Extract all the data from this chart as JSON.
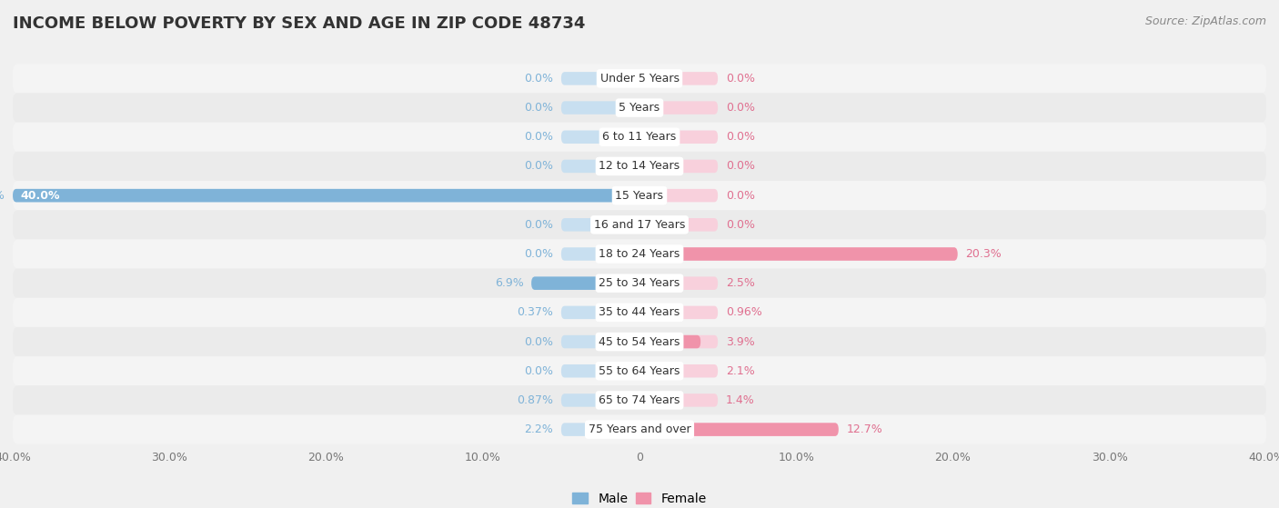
{
  "title": "INCOME BELOW POVERTY BY SEX AND AGE IN ZIP CODE 48734",
  "source": "Source: ZipAtlas.com",
  "categories": [
    "Under 5 Years",
    "5 Years",
    "6 to 11 Years",
    "12 to 14 Years",
    "15 Years",
    "16 and 17 Years",
    "18 to 24 Years",
    "25 to 34 Years",
    "35 to 44 Years",
    "45 to 54 Years",
    "55 to 64 Years",
    "65 to 74 Years",
    "75 Years and over"
  ],
  "male": [
    0.0,
    0.0,
    0.0,
    0.0,
    40.0,
    0.0,
    0.0,
    6.9,
    0.37,
    0.0,
    0.0,
    0.87,
    2.2
  ],
  "female": [
    0.0,
    0.0,
    0.0,
    0.0,
    0.0,
    0.0,
    20.3,
    2.5,
    0.96,
    3.9,
    2.1,
    1.4,
    12.7
  ],
  "male_label_values": [
    "0.0%",
    "0.0%",
    "0.0%",
    "0.0%",
    "40.0%",
    "0.0%",
    "0.0%",
    "6.9%",
    "0.37%",
    "0.0%",
    "0.0%",
    "0.87%",
    "2.2%"
  ],
  "female_label_values": [
    "0.0%",
    "0.0%",
    "0.0%",
    "0.0%",
    "0.0%",
    "0.0%",
    "20.3%",
    "2.5%",
    "0.96%",
    "3.9%",
    "2.1%",
    "1.4%",
    "12.7%"
  ],
  "male_color": "#7fb3d8",
  "female_color": "#f093aa",
  "male_bar_bg": "#c8dff0",
  "female_bar_bg": "#f8d0dc",
  "male_label_color": "#7fb3d8",
  "female_label_color": "#e07090",
  "row_color_even": "#f4f4f4",
  "row_color_odd": "#ebebeb",
  "background_color": "#f0f0f0",
  "xlim": 40.0,
  "bar_height": 0.45,
  "min_bar_width": 5.0,
  "title_fontsize": 13,
  "label_fontsize": 9,
  "category_fontsize": 9,
  "source_fontsize": 9
}
